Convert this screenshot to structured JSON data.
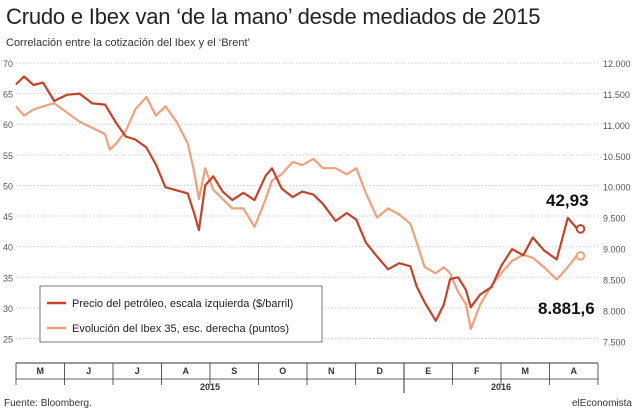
{
  "title": "Crudo e Ibex van ‘de la mano’ desde mediados de 2015",
  "subtitle": "Correlación entre la cotización del Ibex y el ‘Brent’",
  "source": "Fuente: Bloomberg.",
  "brand": "elEconomista",
  "colors": {
    "oil": "#c2432a",
    "ibex": "#f0a07c",
    "grid": "#cccccc",
    "axis": "#333333"
  },
  "chart_data": {
    "type": "line",
    "x_months": [
      "M",
      "J",
      "J",
      "A",
      "S",
      "O",
      "N",
      "D",
      "E",
      "F",
      "M",
      "A"
    ],
    "x_years": [
      "2015",
      "2016"
    ],
    "y_left": {
      "ticks": [
        25,
        30,
        35,
        40,
        45,
        50,
        55,
        60,
        65,
        70
      ],
      "range": [
        21,
        70
      ]
    },
    "y_right": {
      "ticks": [
        "7.500",
        "8.000",
        "8.500",
        "9.000",
        "9.500",
        "10.000",
        "10.500",
        "11.000",
        "11.500",
        "12.000"
      ],
      "range": [
        7150,
        12000
      ]
    },
    "series": [
      {
        "name": "Precio del petróleo, escala izquierda ($/barril)",
        "axis": "left",
        "last_label": "42,93",
        "points": [
          [
            "2015-05-01",
            66.5
          ],
          [
            "2015-05-06",
            67.8
          ],
          [
            "2015-05-12",
            66.4
          ],
          [
            "2015-05-18",
            66.8
          ],
          [
            "2015-05-25",
            63.8
          ],
          [
            "2015-06-02",
            64.8
          ],
          [
            "2015-06-10",
            65.0
          ],
          [
            "2015-06-18",
            63.4
          ],
          [
            "2015-06-26",
            63.2
          ],
          [
            "2015-07-03",
            60.2
          ],
          [
            "2015-07-09",
            58.0
          ],
          [
            "2015-07-15",
            57.5
          ],
          [
            "2015-07-22",
            56.2
          ],
          [
            "2015-07-28",
            53.4
          ],
          [
            "2015-08-03",
            49.7
          ],
          [
            "2015-08-10",
            49.2
          ],
          [
            "2015-08-17",
            48.7
          ],
          [
            "2015-08-21",
            45.5
          ],
          [
            "2015-08-24",
            42.7
          ],
          [
            "2015-08-28",
            50.0
          ],
          [
            "2015-09-02",
            51.5
          ],
          [
            "2015-09-08",
            49.0
          ],
          [
            "2015-09-14",
            47.6
          ],
          [
            "2015-09-21",
            48.8
          ],
          [
            "2015-09-28",
            47.6
          ],
          [
            "2015-10-05",
            51.6
          ],
          [
            "2015-10-09",
            52.8
          ],
          [
            "2015-10-15",
            49.5
          ],
          [
            "2015-10-22",
            48.1
          ],
          [
            "2015-10-28",
            49.0
          ],
          [
            "2015-11-04",
            48.5
          ],
          [
            "2015-11-10",
            47.0
          ],
          [
            "2015-11-18",
            44.2
          ],
          [
            "2015-11-25",
            45.5
          ],
          [
            "2015-12-01",
            44.4
          ],
          [
            "2015-12-07",
            40.7
          ],
          [
            "2015-12-14",
            38.4
          ],
          [
            "2015-12-21",
            36.3
          ],
          [
            "2015-12-28",
            37.3
          ],
          [
            "2016-01-04",
            36.8
          ],
          [
            "2016-01-08",
            33.5
          ],
          [
            "2016-01-13",
            30.9
          ],
          [
            "2016-01-20",
            27.9
          ],
          [
            "2016-01-25",
            30.5
          ],
          [
            "2016-01-29",
            34.7
          ],
          [
            "2016-02-03",
            35.0
          ],
          [
            "2016-02-08",
            32.9
          ],
          [
            "2016-02-11",
            30.1
          ],
          [
            "2016-02-17",
            32.2
          ],
          [
            "2016-02-24",
            33.4
          ],
          [
            "2016-03-01",
            36.8
          ],
          [
            "2016-03-08",
            39.6
          ],
          [
            "2016-03-15",
            38.6
          ],
          [
            "2016-03-21",
            41.5
          ],
          [
            "2016-03-28",
            39.4
          ],
          [
            "2016-04-05",
            37.9
          ],
          [
            "2016-04-12",
            44.7
          ],
          [
            "2016-04-18",
            42.9
          ],
          [
            "2016-04-20",
            42.9
          ]
        ]
      },
      {
        "name": "Evolución del Ibex 35, esc. derecha (puntos)",
        "axis": "right",
        "last_label": "8.881,6",
        "points": [
          [
            "2015-05-01",
            11300
          ],
          [
            "2015-05-06",
            11150
          ],
          [
            "2015-05-12",
            11250
          ],
          [
            "2015-05-18",
            11300
          ],
          [
            "2015-05-25",
            11350
          ],
          [
            "2015-06-02",
            11200
          ],
          [
            "2015-06-10",
            11050
          ],
          [
            "2015-06-18",
            10950
          ],
          [
            "2015-06-26",
            10850
          ],
          [
            "2015-06-29",
            10600
          ],
          [
            "2015-07-03",
            10700
          ],
          [
            "2015-07-09",
            10900
          ],
          [
            "2015-07-15",
            11250
          ],
          [
            "2015-07-22",
            11450
          ],
          [
            "2015-07-28",
            11150
          ],
          [
            "2015-08-03",
            11300
          ],
          [
            "2015-08-10",
            11050
          ],
          [
            "2015-08-17",
            10700
          ],
          [
            "2015-08-21",
            10250
          ],
          [
            "2015-08-24",
            9800
          ],
          [
            "2015-08-28",
            10300
          ],
          [
            "2015-09-02",
            9950
          ],
          [
            "2015-09-08",
            9800
          ],
          [
            "2015-09-14",
            9650
          ],
          [
            "2015-09-21",
            9650
          ],
          [
            "2015-09-28",
            9350
          ],
          [
            "2015-10-05",
            9800
          ],
          [
            "2015-10-09",
            10100
          ],
          [
            "2015-10-15",
            10200
          ],
          [
            "2015-10-22",
            10400
          ],
          [
            "2015-10-28",
            10350
          ],
          [
            "2015-11-04",
            10450
          ],
          [
            "2015-11-10",
            10300
          ],
          [
            "2015-11-18",
            10300
          ],
          [
            "2015-11-25",
            10200
          ],
          [
            "2015-12-01",
            10300
          ],
          [
            "2015-12-07",
            9900
          ],
          [
            "2015-12-14",
            9500
          ],
          [
            "2015-12-21",
            9650
          ],
          [
            "2015-12-28",
            9550
          ],
          [
            "2016-01-04",
            9400
          ],
          [
            "2016-01-08",
            9100
          ],
          [
            "2016-01-13",
            8700
          ],
          [
            "2016-01-20",
            8600
          ],
          [
            "2016-01-25",
            8700
          ],
          [
            "2016-01-29",
            8600
          ],
          [
            "2016-02-03",
            8300
          ],
          [
            "2016-02-08",
            8100
          ],
          [
            "2016-02-11",
            7700
          ],
          [
            "2016-02-17",
            8100
          ],
          [
            "2016-02-24",
            8400
          ],
          [
            "2016-03-01",
            8600
          ],
          [
            "2016-03-08",
            8800
          ],
          [
            "2016-03-15",
            8900
          ],
          [
            "2016-03-21",
            8850
          ],
          [
            "2016-03-28",
            8700
          ],
          [
            "2016-04-05",
            8500
          ],
          [
            "2016-04-12",
            8700
          ],
          [
            "2016-04-18",
            8900
          ],
          [
            "2016-04-20",
            8882
          ]
        ]
      }
    ]
  }
}
